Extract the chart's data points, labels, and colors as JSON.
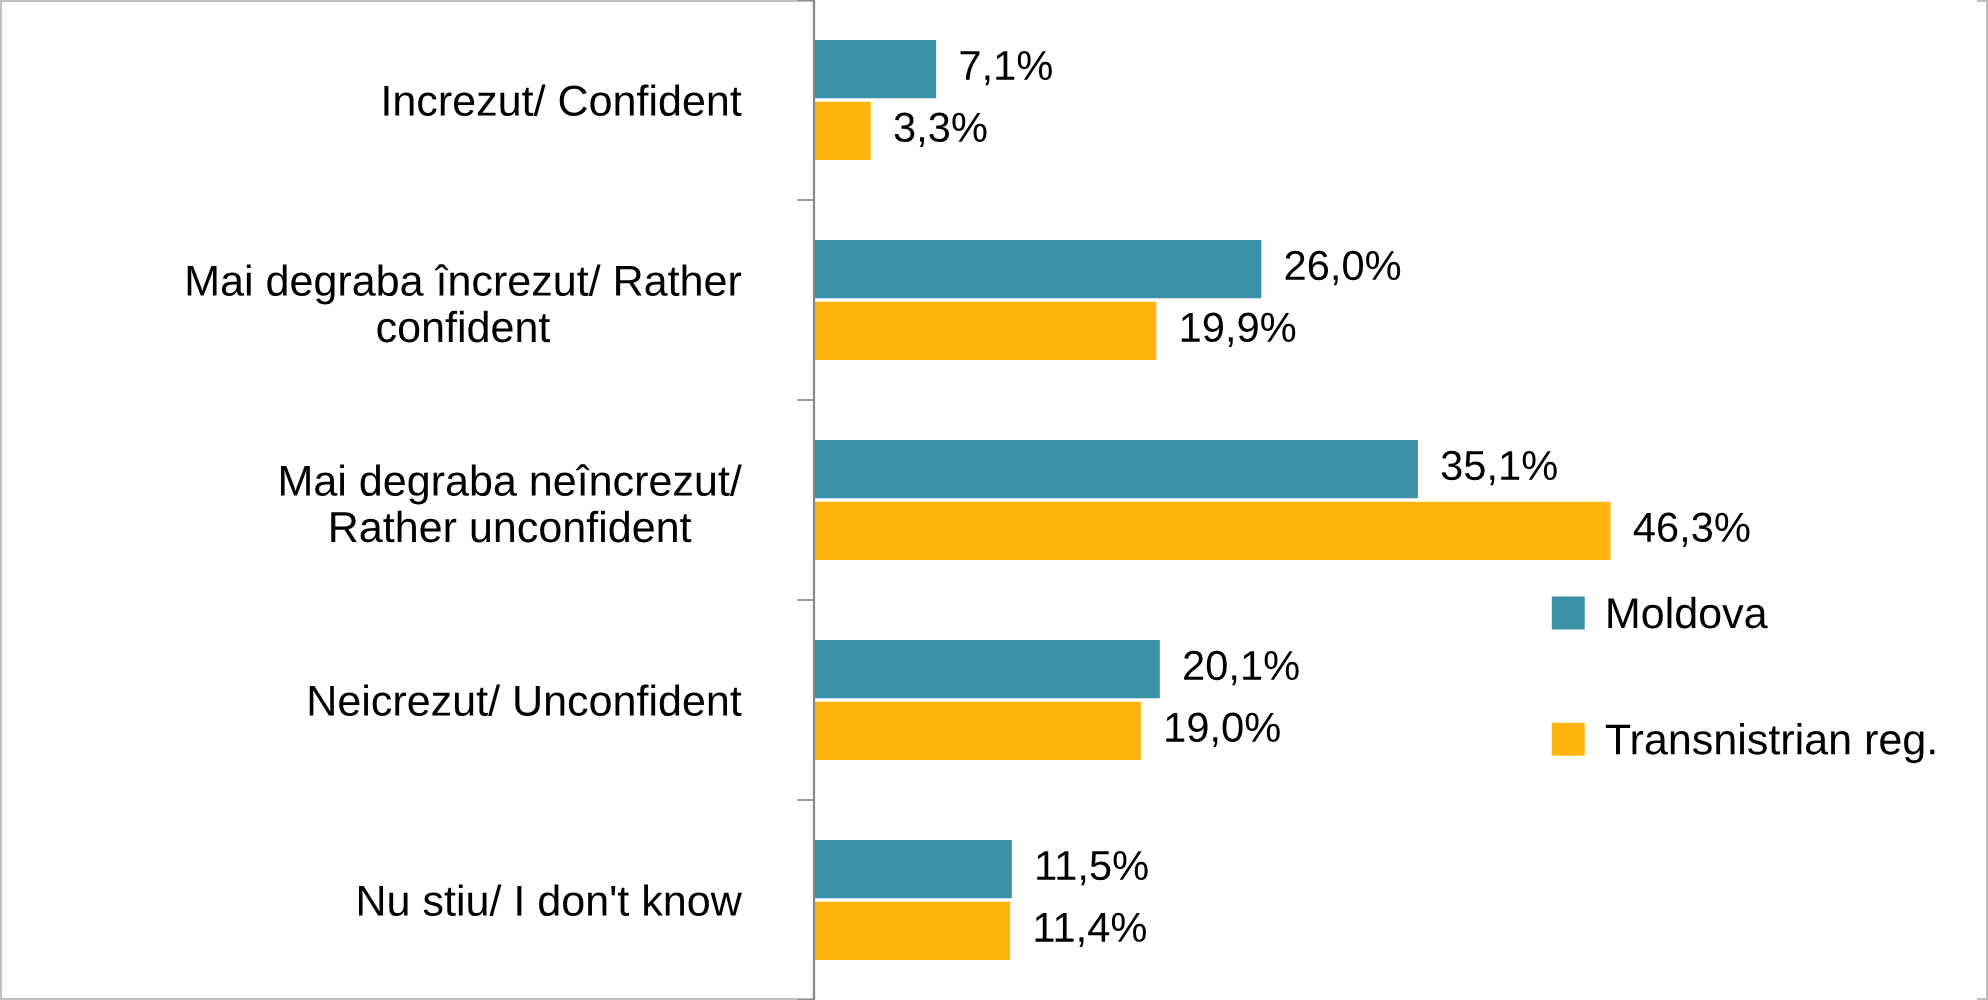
{
  "chart_data": {
    "type": "bar",
    "orientation": "horizontal",
    "categories": [
      "Increzut/ Confident",
      "Mai degraba încrezut/ Rather\nconfident",
      "Mai degraba neîncrezut/\nRather unconfident",
      "Neicrezut/ Unconfident",
      "Nu stiu/ I don't know"
    ],
    "series": [
      {
        "name": "Moldova",
        "color": "#3a91a8",
        "values": [
          7.1,
          26.0,
          35.1,
          20.1,
          11.5
        ],
        "value_labels": [
          "7,1%",
          "26,0%",
          "35,1%",
          "20,1%",
          "11,5%"
        ]
      },
      {
        "name": "Transnistrian reg.",
        "color": "#ffb50d",
        "values": [
          3.3,
          19.9,
          46.3,
          19.0,
          11.4
        ],
        "value_labels": [
          "3,3%",
          "19,9%",
          "46,3%",
          "19,0%",
          "11,4%"
        ]
      }
    ],
    "legend": "right",
    "grid": false
  }
}
